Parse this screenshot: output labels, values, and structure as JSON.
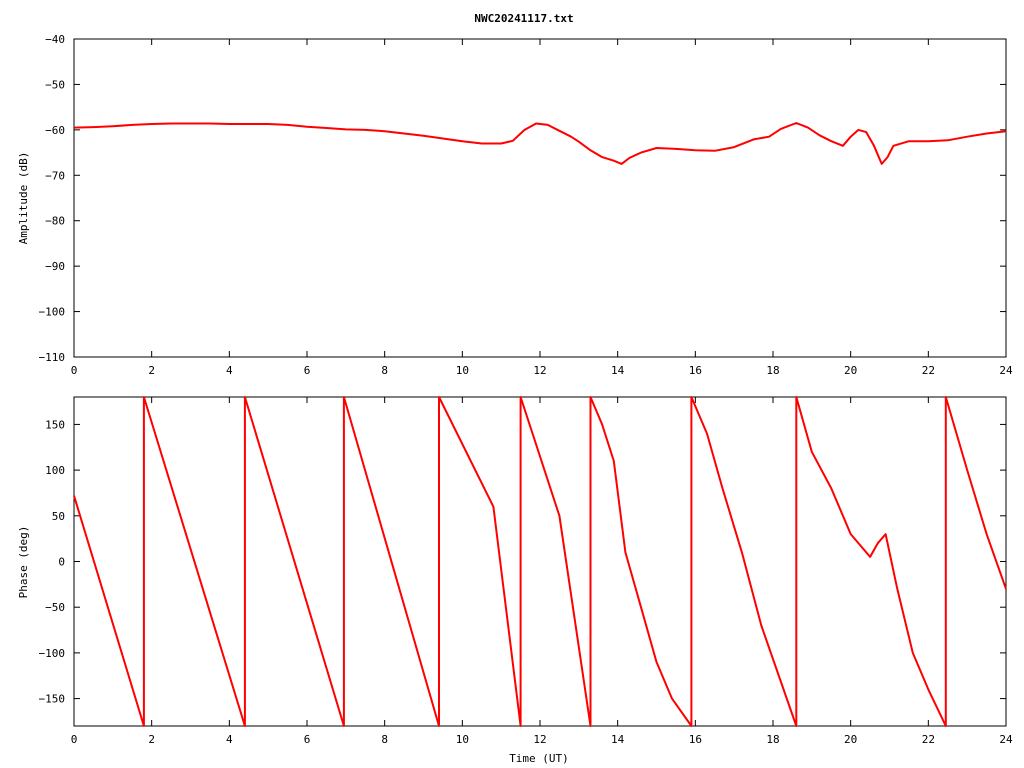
{
  "title": "NWC20241117.txt",
  "chart_data": [
    {
      "type": "line",
      "ylabel": "Amplitude (dB)",
      "xlabel": "",
      "xlim": [
        0,
        24
      ],
      "ylim": [
        -110,
        -40
      ],
      "xticks": [
        0,
        2,
        4,
        6,
        8,
        10,
        12,
        14,
        16,
        18,
        20,
        22,
        24
      ],
      "yticks": [
        -110,
        -100,
        -90,
        -80,
        -70,
        -60,
        -50,
        -40
      ],
      "grid": false,
      "series": [
        {
          "color": "#ff0000",
          "x": [
            0,
            0.5,
            1,
            1.5,
            2,
            2.5,
            3,
            3.5,
            4,
            4.5,
            5,
            5.5,
            6,
            6.5,
            7,
            7.5,
            8,
            8.5,
            9,
            9.5,
            10,
            10.5,
            11,
            11.3,
            11.6,
            11.9,
            12.2,
            12.5,
            12.8,
            13.0,
            13.3,
            13.6,
            13.9,
            14.1,
            14.3,
            14.6,
            15.0,
            15.5,
            16.0,
            16.5,
            17.0,
            17.5,
            17.9,
            18.2,
            18.6,
            18.9,
            19.2,
            19.5,
            19.8,
            20.0,
            20.2,
            20.4,
            20.6,
            20.8,
            20.95,
            21.1,
            21.5,
            22.0,
            22.5,
            23.0,
            23.5,
            24.0
          ],
          "y": [
            -59.5,
            -59.4,
            -59.2,
            -58.9,
            -58.7,
            -58.6,
            -58.6,
            -58.6,
            -58.7,
            -58.7,
            -58.7,
            -58.9,
            -59.3,
            -59.6,
            -59.9,
            -60.0,
            -60.3,
            -60.8,
            -61.3,
            -61.9,
            -62.5,
            -63.0,
            -63.0,
            -62.4,
            -60.0,
            -58.6,
            -58.9,
            -60.2,
            -61.5,
            -62.6,
            -64.5,
            -66.0,
            -66.8,
            -67.5,
            -66.2,
            -65.0,
            -64.0,
            -64.2,
            -64.5,
            -64.6,
            -63.8,
            -62.1,
            -61.5,
            -59.8,
            -58.5,
            -59.5,
            -61.2,
            -62.5,
            -63.5,
            -61.5,
            -60.0,
            -60.5,
            -63.5,
            -67.5,
            -66.0,
            -63.5,
            -62.5,
            -62.5,
            -62.3,
            -61.5,
            -60.8,
            -60.3
          ]
        }
      ]
    },
    {
      "type": "line",
      "ylabel": "Phase (deg)",
      "xlabel": "Time (UT)",
      "xlim": [
        0,
        24
      ],
      "ylim": [
        -180,
        180
      ],
      "xticks": [
        0,
        2,
        4,
        6,
        8,
        10,
        12,
        14,
        16,
        18,
        20,
        22,
        24
      ],
      "yticks": [
        -150,
        -100,
        -50,
        0,
        50,
        100,
        150
      ],
      "grid": false,
      "series": [
        {
          "color": "#ff0000",
          "x": [
            0,
            1.8,
            1.8,
            4.4,
            4.4,
            6.95,
            6.95,
            9.4,
            9.4,
            10.8,
            11.5,
            11.5,
            12.5,
            13.3,
            13.3,
            13.6,
            13.9,
            14.2,
            14.6,
            15.0,
            15.4,
            15.9,
            15.9,
            16.3,
            16.7,
            17.2,
            17.7,
            18.6,
            18.6,
            19.0,
            19.5,
            20.0,
            20.5,
            20.7,
            20.9,
            21.2,
            21.6,
            22.0,
            22.45,
            22.45,
            23.0,
            23.5,
            24.0
          ],
          "y": [
            72,
            -180,
            180,
            -180,
            180,
            -180,
            180,
            -180,
            180,
            60,
            -180,
            180,
            50,
            -180,
            180,
            150,
            110,
            10,
            -50,
            -110,
            -150,
            -180,
            180,
            140,
            80,
            10,
            -70,
            -180,
            180,
            120,
            80,
            30,
            5,
            20,
            30,
            -30,
            -100,
            -140,
            -180,
            180,
            100,
            30,
            -30
          ]
        }
      ]
    }
  ]
}
